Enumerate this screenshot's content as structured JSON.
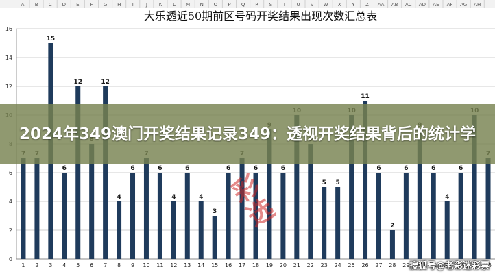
{
  "chart_data": {
    "type": "bar",
    "title": "大乐透近50期前区号码开奖结果出现次数汇总表",
    "categories": [
      "1",
      "2",
      "3",
      "4",
      "5",
      "6",
      "7",
      "8",
      "9",
      "10",
      "11",
      "12",
      "13",
      "14",
      "15",
      "16",
      "17",
      "18",
      "19",
      "20",
      "21",
      "22",
      "23",
      "24",
      "25",
      "26",
      "27",
      "28",
      "29",
      "30",
      "31",
      "32",
      "33",
      "34",
      "35"
    ],
    "values": [
      7,
      7,
      15,
      6,
      12,
      8,
      12,
      4,
      6,
      7,
      6,
      4,
      6,
      4,
      3,
      6,
      7,
      6,
      9,
      6,
      10,
      8,
      5,
      5,
      10,
      11,
      6,
      2,
      6,
      9,
      6,
      4,
      6,
      10,
      7
    ],
    "ylim": [
      0,
      16
    ],
    "yticks": [
      0,
      2,
      4,
      6,
      8,
      10,
      12,
      14,
      16
    ],
    "grid": true,
    "bar_color": "#1f3b5c",
    "column_letters": [
      "A",
      "B",
      "C",
      "D",
      "E",
      "F",
      "G",
      "H",
      "I",
      "J",
      "K",
      "L",
      "M",
      "N",
      "O",
      "P",
      "Q",
      "R",
      "S",
      "T",
      "U",
      "V",
      "W",
      "X",
      "Y",
      "Z",
      "AA",
      "AB",
      "AC",
      "AD",
      "AE",
      "AF",
      "AG",
      "AH"
    ]
  },
  "overlay": {
    "banner_text": "2024年349澳门开奖结果记录349：透视开奖结果背后的统计学",
    "banner_color": "#78824f",
    "stamp_text": "彩选",
    "watermark_text": "搜狐号@老彩迷彩票"
  }
}
